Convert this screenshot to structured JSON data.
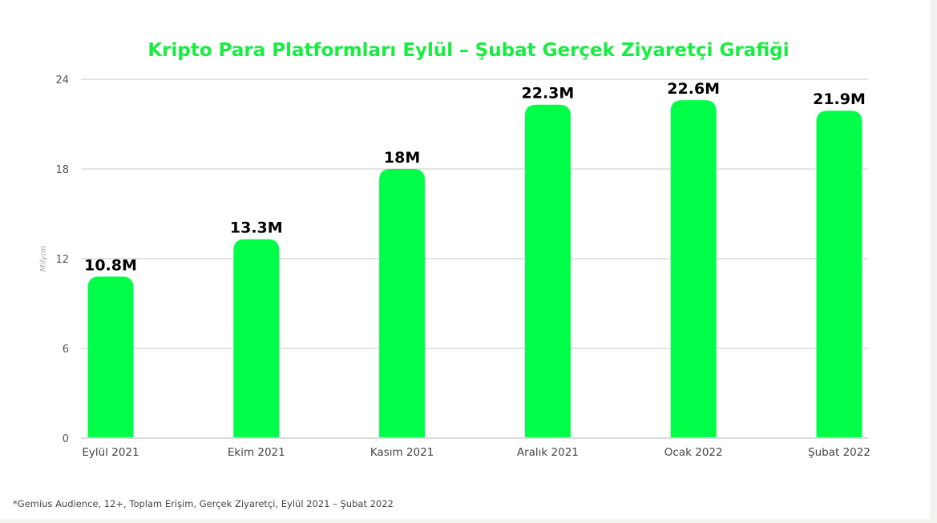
{
  "chart_data": {
    "type": "bar",
    "title": "Kripto Para Platformları Eylül – Şubat Gerçek Ziyaretçi Grafiği",
    "xlabel": "",
    "ylabel": "Milyon",
    "ylim": [
      0,
      24
    ],
    "yticks": [
      0,
      6,
      12,
      18,
      24
    ],
    "grid": true,
    "categories": [
      "Eylül 2021",
      "Ekim 2021",
      "Kasım 2021",
      "Aralık 2021",
      "Ocak 2022",
      "Şubat 2022"
    ],
    "values": [
      10.8,
      13.3,
      18,
      22.3,
      22.6,
      21.9
    ],
    "data_labels": [
      "10.8M",
      "13.3M",
      "18M",
      "22.3M",
      "22.6M",
      "21.9M"
    ],
    "bar_color": "#00ff48",
    "title_color": "#16ee3f"
  },
  "footnote": "*Gemius Audience, 12+, Toplam Erişim, Gerçek Ziyaretçi, Eylül 2021 – Şubat 2022"
}
